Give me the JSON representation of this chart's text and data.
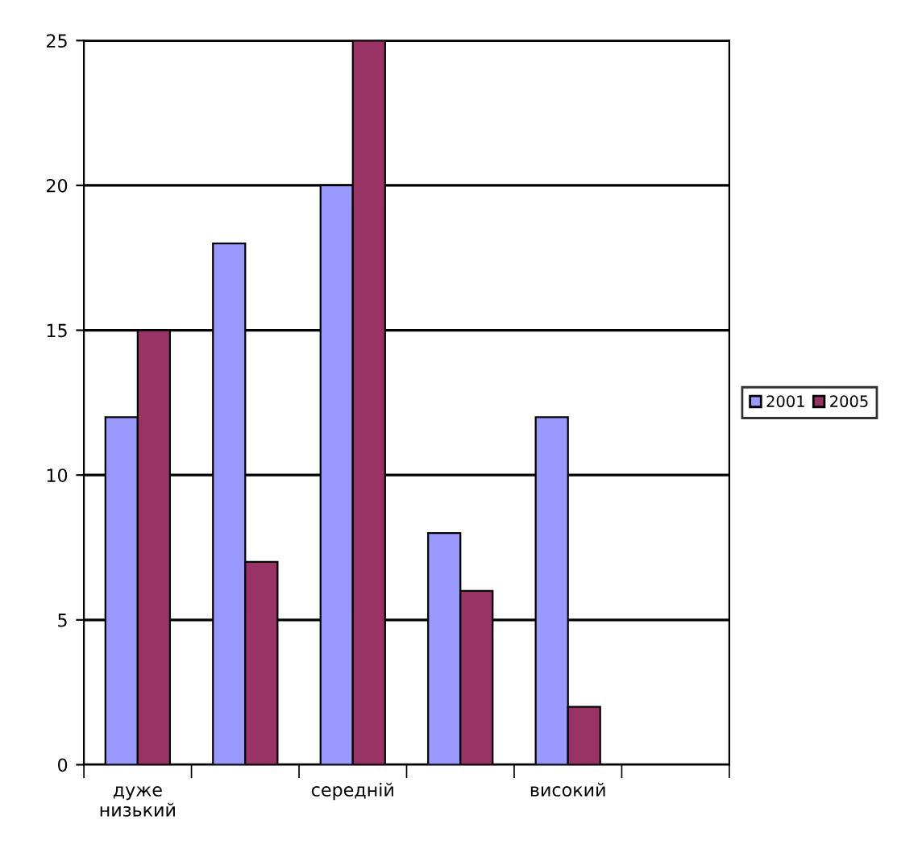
{
  "chart_data": {
    "type": "bar",
    "categories": [
      "дуже низький",
      null,
      "середній",
      null,
      "високий",
      null
    ],
    "series": [
      {
        "name": "2001",
        "color": "#9999ff",
        "values": [
          12,
          18,
          20,
          8,
          12,
          null
        ]
      },
      {
        "name": "2005",
        "color": "#993366",
        "values": [
          15,
          7,
          25,
          6,
          2,
          null
        ]
      }
    ],
    "ylim": [
      0,
      25
    ],
    "yticks": [
      0,
      5,
      10,
      15,
      20,
      25
    ],
    "grid": "y",
    "legend": "right"
  }
}
